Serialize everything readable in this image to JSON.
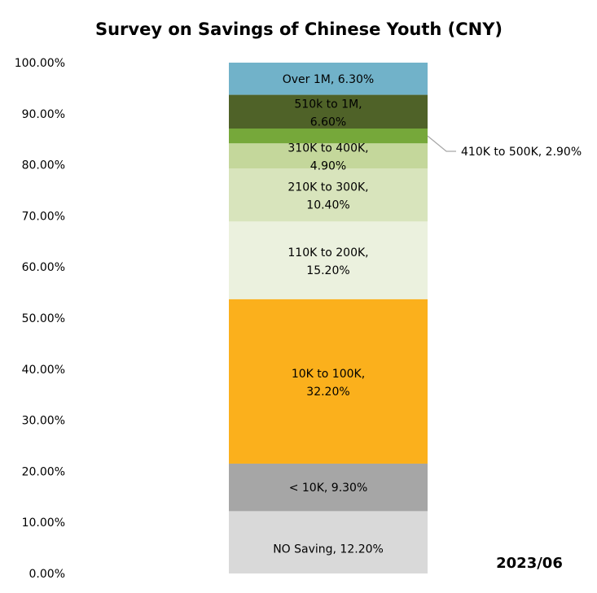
{
  "chart_data": {
    "type": "bar",
    "stacked": true,
    "title": "Survey on Savings of Chinese Youth (CNY)",
    "annotation": "2023/06",
    "ylim": [
      0,
      100
    ],
    "y_tick_labels": [
      "0.00%",
      "10.00%",
      "20.00%",
      "30.00%",
      "40.00%",
      "50.00%",
      "60.00%",
      "70.00%",
      "80.00%",
      "90.00%",
      "100.00%"
    ],
    "grid": false,
    "legend": "none",
    "series": [
      {
        "name": "NO Saving",
        "value": 12.2,
        "color": "#d9d9d9"
      },
      {
        "name": "< 10K",
        "value": 9.3,
        "color": "#a6a6a6"
      },
      {
        "name": "10K to 100K",
        "value": 32.2,
        "color": "#fbb01c"
      },
      {
        "name": "110K to 200K",
        "value": 15.2,
        "color": "#ebf1de"
      },
      {
        "name": "210K to 300K",
        "value": 10.4,
        "color": "#d8e4bc"
      },
      {
        "name": "310K to 400K",
        "value": 4.9,
        "color": "#c4d79b"
      },
      {
        "name": "410K to 500K",
        "value": 2.9,
        "color": "#76a83a"
      },
      {
        "name": "510k to 1M",
        "value": 6.6,
        "color": "#4f6228"
      },
      {
        "name": "Over 1M",
        "value": 6.3,
        "color": "#71b2c9"
      }
    ]
  }
}
